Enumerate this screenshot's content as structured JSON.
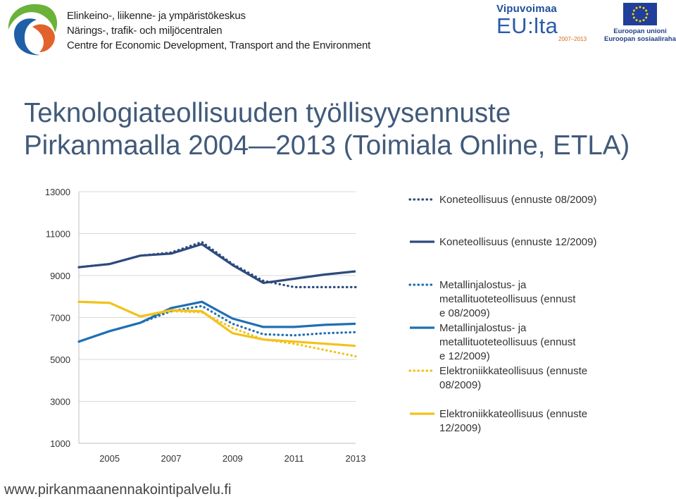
{
  "header": {
    "org_lines": [
      "Elinkeino-, liikenne- ja ympäristökeskus",
      "Närings-, trafik- och miljöcentralen",
      "Centre for Economic Development, Transport and the Environment"
    ],
    "vipuvoimaa": {
      "title": "Vipuvoimaa",
      "main": "EU:lta",
      "years": "2007–2013"
    },
    "eu": {
      "line1": "Euroopan unioni",
      "line2": "Euroopan sosiaalirahasto"
    },
    "colors": {
      "ely_blue": "#1f5fa8",
      "ely_orange": "#e2622b",
      "ely_green": "#6ab23a",
      "eu_blue": "#1f3f9a",
      "eu_star": "#ffd700"
    }
  },
  "title": {
    "line1": "Teknologiateollisuuden työllisyysennuste",
    "line2": "Pirkanmaalla 2004—2013 (Toimiala Online, ETLA)"
  },
  "footer": {
    "url": "www.pirkanmaanennakointipalvelu.fi"
  },
  "chart_data": {
    "type": "line",
    "x": [
      2004,
      2005,
      2006,
      2007,
      2008,
      2009,
      2010,
      2011,
      2012,
      2013
    ],
    "x_tick_labels": [
      "2005",
      "2007",
      "2009",
      "2011",
      "2013"
    ],
    "y_tick_labels": [
      "1000",
      "3000",
      "5000",
      "7000",
      "9000",
      "11000",
      "13000"
    ],
    "ylim": [
      1000,
      13000
    ],
    "grid": "horizontal",
    "legend_position": "right",
    "series": [
      {
        "name": "Koneteollisuus (ennuste 08/2009)",
        "color": "#2e4a7d",
        "style": "dotted",
        "values": [
          9400,
          9550,
          9950,
          10100,
          10600,
          9550,
          8750,
          8450,
          8450,
          8450
        ]
      },
      {
        "name": "Koneteollisuus (ennuste 12/2009)",
        "color": "#2e4a7d",
        "style": "solid",
        "values": [
          9400,
          9550,
          9950,
          10050,
          10500,
          9500,
          8650,
          8850,
          9050,
          9200
        ]
      },
      {
        "name": "Metallinjalostus- ja metallituoteteollisuus (ennuste 08/2009)",
        "color": "#1f6fb4",
        "style": "dotted",
        "values": [
          5850,
          6350,
          6750,
          7300,
          7550,
          6700,
          6200,
          6150,
          6250,
          6300
        ]
      },
      {
        "name": "Metallinjalostus- ja metallituoteteollisuus (ennuste 12/2009)",
        "color": "#1f6fb4",
        "style": "solid",
        "values": [
          5850,
          6350,
          6750,
          7450,
          7750,
          6950,
          6550,
          6550,
          6650,
          6700
        ]
      },
      {
        "name": "Elektroniikkateollisuus (ennuste 08/2009)",
        "color": "#f2c21b",
        "style": "dotted",
        "values": [
          7750,
          7700,
          7050,
          7300,
          7250,
          6500,
          5950,
          5750,
          5450,
          5150
        ]
      },
      {
        "name": "Elektroniikkateollisuus (ennuste 12/2009)",
        "color": "#f2c21b",
        "style": "solid",
        "values": [
          7750,
          7700,
          7050,
          7350,
          7300,
          6250,
          5950,
          5850,
          5750,
          5650
        ]
      }
    ]
  }
}
